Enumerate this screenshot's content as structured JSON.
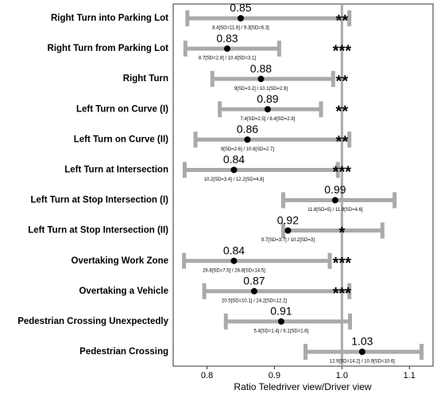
{
  "chart_data": {
    "type": "dotplot",
    "categories": [
      "Right Turn into Parking Lot",
      "Right Turn from Parking Lot",
      "Right Turn",
      "Left Turn on Curve (I)",
      "Left Turn on Curve (II)",
      "Left Turn at Intersection",
      "Left Turn at Stop Intersection (I)",
      "Left Turn at Stop Intersection (II)",
      "Overtaking Work Zone",
      "Overtaking a Vehicle",
      "Pedestrian Crossing Unexpectedly",
      "Pedestrian Crossing"
    ],
    "values": [
      0.85,
      0.83,
      0.88,
      0.89,
      0.86,
      0.84,
      0.99,
      0.92,
      0.84,
      0.87,
      0.91,
      1.03
    ],
    "lower": [
      0.771,
      0.768,
      0.808,
      0.819,
      0.783,
      0.767,
      0.913,
      0.913,
      0.766,
      0.796,
      0.828,
      0.946
    ],
    "upper": [
      1.011,
      0.907,
      0.987,
      0.969,
      1.011,
      0.994,
      1.078,
      1.06,
      0.982,
      1.011,
      1.012,
      1.118
    ],
    "annotations": [
      "8.4[SD=11.6] / 9.3[SD=6.3]",
      "8.7[SD=2.8] / 10.4[SD=3.1]",
      "9[SD=3.2] / 10.1[SD=2.9]",
      "7.4[SD=2.5] / 8.4[SD=2.9]",
      "9[SD=2.6] / 10.6[SD=2.7]",
      "10.2[SD=3.4] / 12.2[SD=4.8]",
      "11.8[SD=5] / 11.9[SD=4.6]",
      "9.7[SD=3.7] / 10.2[SD=3]",
      "26.8[SD=7.5] / 26.8[SD=14.5]",
      "20.5[SD=10.1] / 24.2[SD=12.2]",
      "5.4[SD=1.4] / 6.1[SD=1.6]",
      "12.9[SD=14.2] / 10.9[SD=10.6]"
    ],
    "significance": [
      "**",
      "***",
      "**",
      "**",
      "**",
      "***",
      null,
      "*",
      "***",
      "***",
      null,
      null
    ],
    "xlabel": "Ratio Teledriver view/Driver view",
    "xlim": [
      0.75,
      1.135
    ],
    "xticks": [
      0.8,
      0.9,
      {
        "value": 1,
        "label": "1.0"
      },
      1.1
    ],
    "reference_line": 1,
    "color": "#000000",
    "bar_color": "#aaaaaa"
  }
}
